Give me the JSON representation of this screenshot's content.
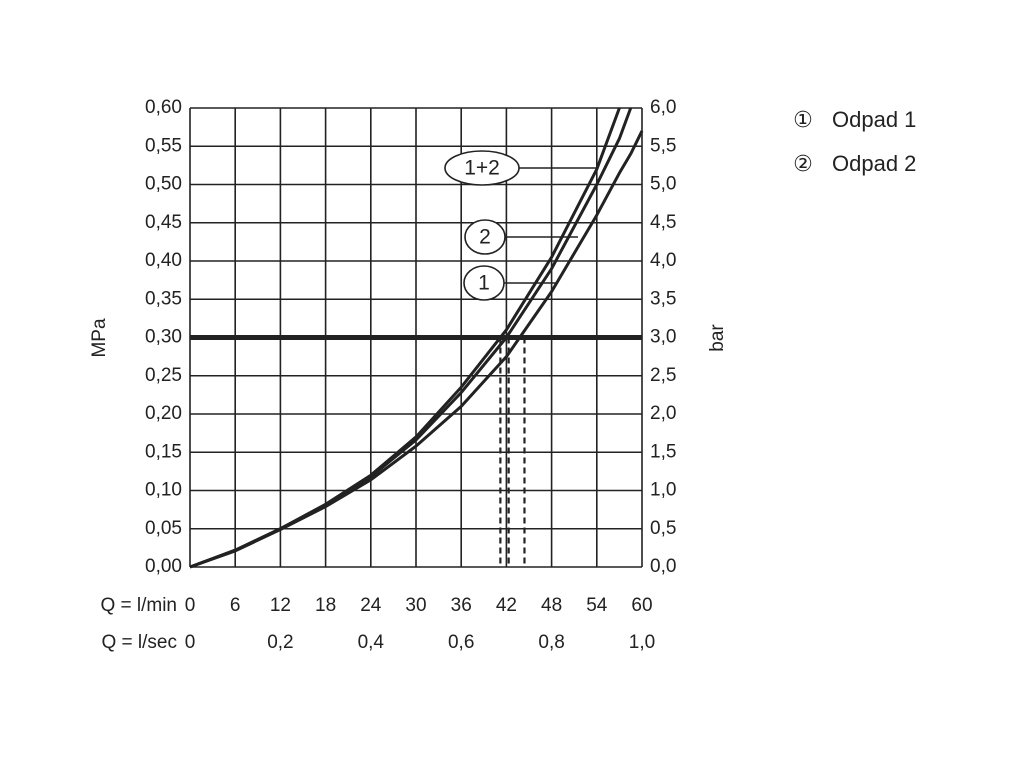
{
  "chart_data": {
    "type": "line",
    "x": [
      0,
      6,
      12,
      18,
      24,
      30,
      36,
      42,
      48,
      54,
      57,
      58.5,
      60
    ],
    "series": [
      {
        "name": "1+2",
        "color": "#222222",
        "values": [
          0,
          0.022,
          0.05,
          0.082,
          0.12,
          0.17,
          0.235,
          0.31,
          0.405,
          0.52,
          0.6,
          null,
          null
        ]
      },
      {
        "name": "2",
        "color": "#222222",
        "values": [
          0,
          0.022,
          0.05,
          0.081,
          0.118,
          0.166,
          0.228,
          0.3,
          0.39,
          0.5,
          0.56,
          0.6,
          null
        ]
      },
      {
        "name": "1",
        "color": "#222222",
        "values": [
          0,
          0.021,
          0.049,
          0.079,
          0.114,
          0.158,
          0.21,
          0.275,
          0.36,
          0.46,
          0.515,
          0.54,
          0.57
        ]
      }
    ],
    "x_label": "Q = l/min",
    "x2_label": "Q = l/sec",
    "y_label": "MPa",
    "y2_label": "bar",
    "xlim": [
      0,
      60
    ],
    "xticks": [
      0,
      6,
      12,
      18,
      24,
      30,
      36,
      42,
      48,
      54,
      60
    ],
    "x2lim": [
      0,
      1
    ],
    "x2ticks": [
      0,
      {
        "value": 0.2,
        "label": "0,2"
      },
      {
        "value": 0.4,
        "label": "0,4"
      },
      {
        "value": 0.6,
        "label": "0,6"
      },
      {
        "value": 0.8,
        "label": "0,8"
      },
      {
        "value": 1,
        "label": "1,0"
      }
    ],
    "ylim": [
      0,
      0.6
    ],
    "yticks": [
      {
        "value": 0,
        "label": "0,00"
      },
      {
        "value": 0.05,
        "label": "0,05"
      },
      {
        "value": 0.1,
        "label": "0,10"
      },
      {
        "value": 0.15,
        "label": "0,15"
      },
      {
        "value": 0.2,
        "label": "0,20"
      },
      {
        "value": 0.25,
        "label": "0,25"
      },
      {
        "value": 0.3,
        "label": "0,30"
      },
      {
        "value": 0.35,
        "label": "0,35"
      },
      {
        "value": 0.4,
        "label": "0,40"
      },
      {
        "value": 0.45,
        "label": "0,45"
      },
      {
        "value": 0.5,
        "label": "0,50"
      },
      {
        "value": 0.55,
        "label": "0,55"
      },
      {
        "value": 0.6,
        "label": "0,60"
      }
    ],
    "y2lim": [
      0,
      6
    ],
    "y2ticks": [
      {
        "value": 0,
        "label": "0,0"
      },
      {
        "value": 0.5,
        "label": "0,5"
      },
      {
        "value": 1,
        "label": "1,0"
      },
      {
        "value": 1.5,
        "label": "1,5"
      },
      {
        "value": 2,
        "label": "2,0"
      },
      {
        "value": 2.5,
        "label": "2,5"
      },
      {
        "value": 3,
        "label": "3,0"
      },
      {
        "value": 3.5,
        "label": "3,5"
      },
      {
        "value": 4,
        "label": "4,0"
      },
      {
        "value": 4.5,
        "label": "4,5"
      },
      {
        "value": 5,
        "label": "5,0"
      },
      {
        "value": 5.5,
        "label": "5,5"
      },
      {
        "value": 6,
        "label": "6,0"
      }
    ],
    "hline": 0.3,
    "vlines": [
      41.2,
      42.3,
      44.4
    ],
    "grid": true,
    "legend": [
      {
        "symbol": "①",
        "label": "Odpad 1"
      },
      {
        "symbol": "②",
        "label": "Odpad 2"
      }
    ]
  }
}
